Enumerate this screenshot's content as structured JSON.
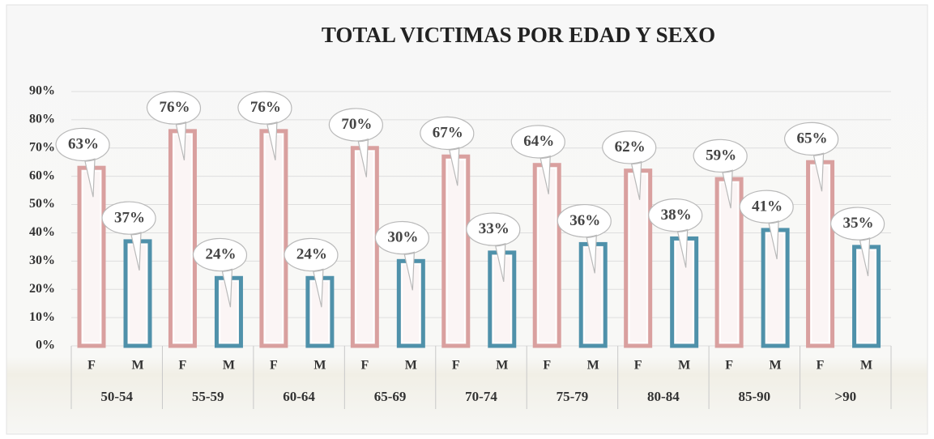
{
  "chart_data": {
    "type": "bar",
    "title": "TOTAL VICTIMAS POR EDAD Y SEXO",
    "categories": [
      "50-54",
      "55-59",
      "60-64",
      "65-69",
      "70-74",
      "75-79",
      "80-84",
      "85-90",
      ">90"
    ],
    "series": [
      {
        "name": "F",
        "color": "#d9a09f",
        "values": [
          63,
          76,
          76,
          70,
          67,
          64,
          62,
          59,
          65
        ],
        "value_labels": [
          "63%",
          "76%",
          "76%",
          "70%",
          "67%",
          "64%",
          "62%",
          "59%",
          "65%"
        ]
      },
      {
        "name": "M",
        "color": "#4f91aa",
        "values": [
          37,
          24,
          24,
          30,
          33,
          36,
          38,
          41,
          35
        ],
        "value_labels": [
          "37%",
          "24%",
          "24%",
          "30%",
          "33%",
          "36%",
          "38%",
          "41%",
          "35%"
        ]
      }
    ],
    "ylim": [
      0,
      90
    ],
    "yticks": [
      {
        "value": 0,
        "label": "0%"
      },
      {
        "value": 10,
        "label": "10%"
      },
      {
        "value": 20,
        "label": "20%"
      },
      {
        "value": 30,
        "label": "30%"
      },
      {
        "value": 40,
        "label": "40%"
      },
      {
        "value": 50,
        "label": "50%"
      },
      {
        "value": 60,
        "label": "60%"
      },
      {
        "value": 70,
        "label": "70%"
      },
      {
        "value": 80,
        "label": "80%"
      },
      {
        "value": 90,
        "label": "90%"
      }
    ],
    "grid": true
  }
}
